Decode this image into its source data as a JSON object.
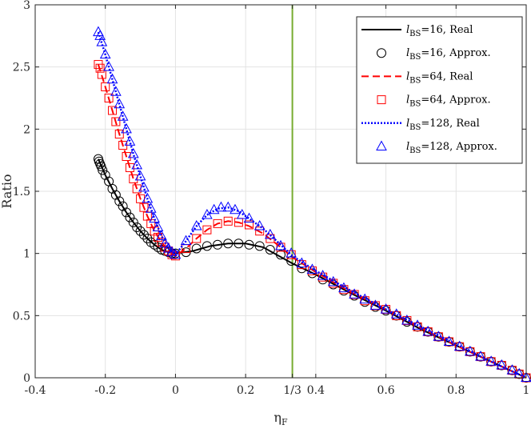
{
  "chart_data": {
    "type": "line",
    "xlabel": "η_F",
    "ylabel": "Ratio",
    "xlim": [
      -0.4,
      1
    ],
    "ylim": [
      0,
      3
    ],
    "xticks": [
      -0.4,
      -0.2,
      0,
      0.2,
      0.3333,
      0.4,
      0.6,
      0.8,
      1
    ],
    "xtick_labels": [
      "-0.4",
      "-0.2",
      "0",
      "0.2",
      "1/3",
      "0.4",
      "0.6",
      "0.8",
      "1"
    ],
    "yticks": [
      0,
      0.5,
      1,
      1.5,
      2,
      2.5,
      3
    ],
    "ytick_labels": [
      "0",
      "0.5",
      "1",
      "1.5",
      "2",
      "2.5",
      "3"
    ],
    "grid": true,
    "legend_position": "top-right",
    "vertical_line": {
      "x": 0.3333,
      "color": "#77ac30"
    },
    "series": [
      {
        "name": "l_BS=16, Real",
        "legend_main": "l",
        "legend_sub": "BS",
        "legend_rest": "=16, Real",
        "style": "solid",
        "color": "#000000",
        "x": [
          -0.22,
          -0.2,
          -0.18,
          -0.16,
          -0.14,
          -0.12,
          -0.1,
          -0.08,
          -0.06,
          -0.04,
          -0.02,
          0,
          0.05,
          0.1,
          0.15,
          0.2,
          0.25,
          0.3333,
          0.4,
          0.5,
          0.6,
          0.7,
          0.8,
          0.9,
          1.0
        ],
        "y": [
          1.76,
          1.63,
          1.52,
          1.42,
          1.33,
          1.25,
          1.18,
          1.12,
          1.07,
          1.03,
          1.01,
          1.0,
          1.02,
          1.06,
          1.08,
          1.08,
          1.05,
          0.92,
          0.83,
          0.68,
          0.54,
          0.39,
          0.26,
          0.13,
          0.0
        ]
      },
      {
        "name": "l_BS=16, Approx.",
        "legend_main": "l",
        "legend_sub": "BS",
        "legend_rest": "=16, Approx.",
        "style": "circle",
        "color": "#000000",
        "x": [
          -0.22,
          -0.218,
          -0.215,
          -0.212,
          -0.208,
          -0.2,
          -0.19,
          -0.18,
          -0.17,
          -0.16,
          -0.15,
          -0.14,
          -0.13,
          -0.12,
          -0.11,
          -0.1,
          -0.09,
          -0.08,
          -0.07,
          -0.06,
          -0.05,
          -0.04,
          -0.03,
          -0.02,
          -0.01,
          0.0,
          0.03,
          0.06,
          0.09,
          0.12,
          0.15,
          0.18,
          0.21,
          0.24,
          0.27,
          0.3,
          0.33,
          0.36,
          0.39,
          0.42,
          0.45,
          0.48,
          0.51,
          0.54,
          0.57,
          0.6,
          0.63,
          0.66,
          0.69,
          0.72,
          0.75,
          0.78,
          0.81,
          0.84,
          0.87,
          0.9,
          0.93,
          0.96,
          0.98,
          1.0
        ],
        "y": [
          1.76,
          1.74,
          1.72,
          1.7,
          1.67,
          1.63,
          1.58,
          1.52,
          1.47,
          1.42,
          1.38,
          1.33,
          1.29,
          1.25,
          1.21,
          1.18,
          1.15,
          1.12,
          1.09,
          1.07,
          1.05,
          1.03,
          1.02,
          1.01,
          1.0,
          1.0,
          1.01,
          1.04,
          1.06,
          1.07,
          1.08,
          1.08,
          1.07,
          1.06,
          1.03,
          0.99,
          0.94,
          0.88,
          0.84,
          0.79,
          0.75,
          0.7,
          0.66,
          0.61,
          0.57,
          0.54,
          0.5,
          0.45,
          0.41,
          0.37,
          0.33,
          0.29,
          0.25,
          0.21,
          0.17,
          0.13,
          0.1,
          0.06,
          0.03,
          0.0
        ]
      },
      {
        "name": "l_BS=64, Real",
        "legend_main": "l",
        "legend_sub": "BS",
        "legend_rest": "=64, Real",
        "style": "dashed",
        "color": "#ff0000",
        "x": [
          -0.22,
          -0.2,
          -0.18,
          -0.16,
          -0.14,
          -0.12,
          -0.1,
          -0.08,
          -0.06,
          -0.04,
          -0.02,
          0,
          0.03,
          0.06,
          0.09,
          0.12,
          0.15,
          0.18,
          0.21,
          0.25,
          0.3,
          0.3333,
          0.4,
          0.5,
          0.6,
          0.7,
          0.8,
          0.9,
          1.0
        ],
        "y": [
          2.52,
          2.34,
          2.15,
          1.96,
          1.78,
          1.6,
          1.44,
          1.3,
          1.18,
          1.09,
          1.02,
          0.98,
          1.04,
          1.12,
          1.19,
          1.24,
          1.26,
          1.25,
          1.22,
          1.16,
          1.05,
          0.97,
          0.85,
          0.69,
          0.55,
          0.4,
          0.26,
          0.13,
          0.0
        ]
      },
      {
        "name": "l_BS=64, Approx.",
        "legend_main": "l",
        "legend_sub": "BS",
        "legend_rest": "=64, Approx.",
        "style": "square",
        "color": "#ff0000",
        "x": [
          -0.22,
          -0.215,
          -0.21,
          -0.2,
          -0.19,
          -0.18,
          -0.17,
          -0.16,
          -0.15,
          -0.14,
          -0.13,
          -0.12,
          -0.11,
          -0.1,
          -0.09,
          -0.08,
          -0.07,
          -0.06,
          -0.05,
          -0.04,
          -0.03,
          -0.02,
          -0.01,
          0.0,
          0.03,
          0.06,
          0.09,
          0.12,
          0.15,
          0.18,
          0.21,
          0.24,
          0.27,
          0.3,
          0.33,
          0.36,
          0.39,
          0.42,
          0.45,
          0.48,
          0.51,
          0.54,
          0.57,
          0.6,
          0.63,
          0.66,
          0.69,
          0.72,
          0.75,
          0.78,
          0.81,
          0.84,
          0.87,
          0.9,
          0.93,
          0.96,
          0.98,
          1.0
        ],
        "y": [
          2.52,
          2.49,
          2.44,
          2.34,
          2.25,
          2.15,
          2.06,
          1.96,
          1.87,
          1.78,
          1.69,
          1.6,
          1.52,
          1.44,
          1.37,
          1.3,
          1.24,
          1.18,
          1.13,
          1.09,
          1.05,
          1.02,
          0.99,
          0.98,
          1.04,
          1.12,
          1.19,
          1.24,
          1.26,
          1.25,
          1.23,
          1.18,
          1.12,
          1.05,
          0.99,
          0.91,
          0.86,
          0.81,
          0.76,
          0.71,
          0.67,
          0.62,
          0.58,
          0.55,
          0.5,
          0.46,
          0.41,
          0.37,
          0.33,
          0.29,
          0.25,
          0.21,
          0.17,
          0.13,
          0.1,
          0.06,
          0.03,
          0.0
        ]
      },
      {
        "name": "l_BS=128, Real",
        "legend_main": "l",
        "legend_sub": "BS",
        "legend_rest": "=128, Real",
        "style": "dotted",
        "color": "#0000ff",
        "x": [
          -0.22,
          -0.2,
          -0.18,
          -0.16,
          -0.14,
          -0.12,
          -0.1,
          -0.08,
          -0.06,
          -0.04,
          -0.02,
          0,
          0.03,
          0.06,
          0.09,
          0.12,
          0.15,
          0.18,
          0.21,
          0.25,
          0.3,
          0.3333,
          0.4,
          0.5,
          0.6,
          0.7,
          0.8,
          0.9,
          1.0
        ],
        "y": [
          2.78,
          2.6,
          2.4,
          2.2,
          2.0,
          1.8,
          1.62,
          1.44,
          1.28,
          1.14,
          1.04,
          0.99,
          1.1,
          1.22,
          1.31,
          1.36,
          1.37,
          1.34,
          1.28,
          1.2,
          1.07,
          0.98,
          0.86,
          0.7,
          0.55,
          0.41,
          0.27,
          0.13,
          0.0
        ]
      },
      {
        "name": "l_BS=128, Approx.",
        "legend_main": "l",
        "legend_sub": "BS",
        "legend_rest": "=128, Approx.",
        "style": "triangle",
        "color": "#0000ff",
        "x": [
          -0.22,
          -0.215,
          -0.21,
          -0.2,
          -0.19,
          -0.18,
          -0.17,
          -0.16,
          -0.15,
          -0.14,
          -0.13,
          -0.12,
          -0.11,
          -0.1,
          -0.09,
          -0.08,
          -0.07,
          -0.06,
          -0.05,
          -0.04,
          -0.03,
          -0.02,
          -0.01,
          0.0,
          0.03,
          0.06,
          0.09,
          0.11,
          0.13,
          0.15,
          0.17,
          0.19,
          0.21,
          0.24,
          0.27,
          0.3,
          0.33,
          0.36,
          0.39,
          0.42,
          0.45,
          0.48,
          0.51,
          0.54,
          0.57,
          0.6,
          0.63,
          0.66,
          0.69,
          0.72,
          0.75,
          0.78,
          0.81,
          0.84,
          0.87,
          0.9,
          0.93,
          0.96,
          0.98,
          1.0
        ],
        "y": [
          2.78,
          2.75,
          2.7,
          2.6,
          2.5,
          2.4,
          2.3,
          2.2,
          2.1,
          2.0,
          1.9,
          1.8,
          1.71,
          1.62,
          1.53,
          1.44,
          1.36,
          1.28,
          1.21,
          1.14,
          1.08,
          1.04,
          1.01,
          0.99,
          1.1,
          1.22,
          1.31,
          1.35,
          1.37,
          1.37,
          1.35,
          1.31,
          1.28,
          1.22,
          1.15,
          1.06,
          1.0,
          0.92,
          0.87,
          0.82,
          0.77,
          0.72,
          0.67,
          0.63,
          0.58,
          0.55,
          0.51,
          0.46,
          0.42,
          0.37,
          0.33,
          0.29,
          0.25,
          0.21,
          0.17,
          0.13,
          0.1,
          0.06,
          0.03,
          0.0
        ]
      }
    ]
  }
}
